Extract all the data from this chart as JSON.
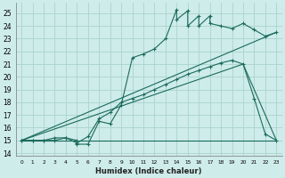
{
  "bg_color": "#ceecea",
  "grid_color": "#aad4cc",
  "line_color": "#1a6b5a",
  "xlabel": "Humidex (Indice chaleur)",
  "xlim": [
    -0.5,
    23.5
  ],
  "ylim": [
    13.8,
    25.8
  ],
  "xticks": [
    0,
    1,
    2,
    3,
    4,
    5,
    6,
    7,
    8,
    9,
    10,
    11,
    12,
    13,
    14,
    15,
    16,
    17,
    18,
    19,
    20,
    21,
    22,
    23
  ],
  "yticks": [
    14,
    15,
    16,
    17,
    18,
    19,
    20,
    21,
    22,
    23,
    24,
    25
  ],
  "line1_x": [
    0,
    1,
    2,
    3,
    4,
    5,
    5,
    6,
    7,
    8,
    9,
    10,
    11,
    12,
    13,
    14,
    14,
    15,
    15,
    16,
    16,
    17,
    17,
    18,
    19,
    20,
    21,
    22,
    23
  ],
  "line1_y": [
    15.0,
    15.0,
    15.0,
    15.0,
    15.2,
    15.0,
    14.7,
    14.7,
    16.5,
    16.3,
    17.8,
    21.5,
    21.8,
    22.2,
    23.0,
    25.3,
    24.5,
    25.2,
    24.0,
    24.8,
    24.0,
    24.8,
    24.2,
    24.0,
    23.8,
    24.2,
    23.7,
    23.2,
    23.5
  ],
  "line2_x": [
    0,
    1,
    2,
    3,
    4,
    5,
    6,
    7,
    8,
    9,
    10,
    11,
    12,
    13,
    14,
    15,
    16,
    17,
    18,
    19,
    20,
    21,
    22,
    23
  ],
  "line2_y": [
    15.0,
    15.0,
    15.0,
    15.2,
    15.2,
    14.8,
    15.3,
    16.7,
    17.2,
    18.0,
    18.3,
    18.6,
    19.0,
    19.4,
    19.8,
    20.2,
    20.5,
    20.8,
    21.1,
    21.3,
    21.0,
    18.3,
    15.5,
    15.0
  ],
  "line3_x": [
    0,
    1,
    2,
    3,
    4,
    5,
    6,
    7,
    8,
    9,
    10,
    11,
    12,
    13,
    14,
    15,
    16,
    17,
    18,
    19,
    20,
    21,
    22,
    23
  ],
  "line3_y": [
    15.0,
    15.0,
    15.0,
    15.0,
    15.0,
    15.0,
    15.0,
    15.0,
    15.0,
    15.0,
    15.0,
    15.0,
    15.0,
    15.0,
    15.0,
    15.0,
    15.0,
    15.0,
    15.0,
    15.0,
    15.0,
    15.0,
    15.0,
    15.0
  ],
  "line4_x": [
    0,
    23
  ],
  "line4_y": [
    15.0,
    23.5
  ],
  "line5_x": [
    0,
    20,
    23
  ],
  "line5_y": [
    15.0,
    21.0,
    15.0
  ],
  "flat_line_x": [
    0,
    3,
    4,
    5,
    6,
    7,
    8,
    9,
    10,
    11,
    12,
    13,
    14,
    15,
    16,
    17,
    18,
    19,
    20,
    21,
    22,
    23
  ],
  "flat_line_y": [
    15.0,
    15.0,
    15.0,
    15.0,
    15.0,
    15.0,
    15.0,
    15.0,
    15.0,
    15.0,
    15.0,
    15.0,
    15.0,
    15.0,
    15.0,
    15.0,
    15.0,
    15.0,
    15.0,
    15.0,
    15.0,
    15.0
  ]
}
